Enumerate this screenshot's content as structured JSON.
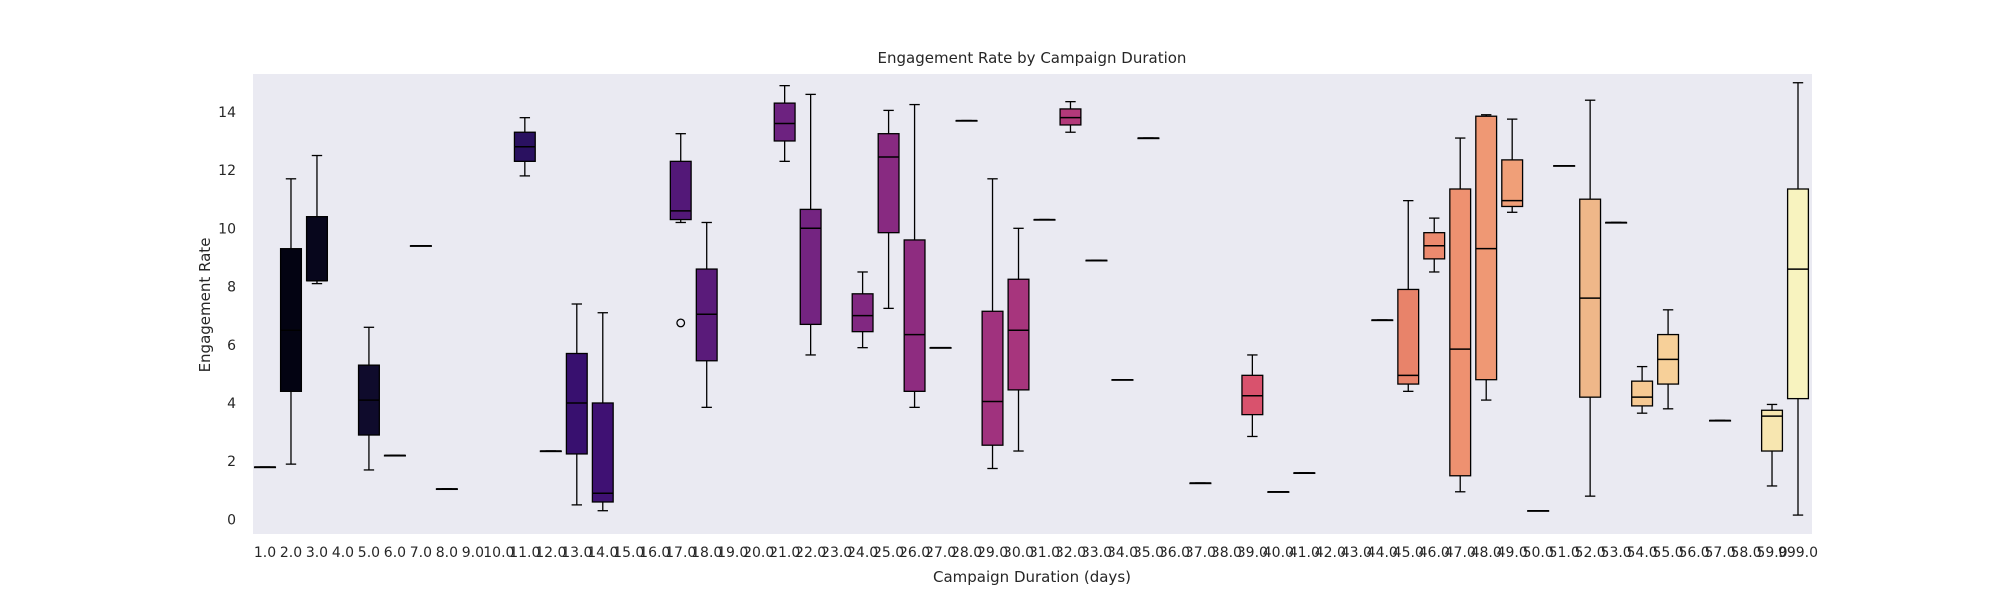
{
  "chart_data": {
    "type": "box",
    "title": "Engagement Rate by Campaign Duration",
    "xlabel": "Campaign Duration (days)",
    "ylabel": "Engagement Rate",
    "ylim": [
      -0.5,
      15.3
    ],
    "yticks": [
      0,
      2,
      4,
      6,
      8,
      10,
      12,
      14
    ],
    "grid": false,
    "categories": [
      "1.0",
      "2.0",
      "3.0",
      "4.0",
      "5.0",
      "6.0",
      "7.0",
      "8.0",
      "9.0",
      "10.0",
      "11.0",
      "12.0",
      "13.0",
      "14.0",
      "15.0",
      "16.0",
      "17.0",
      "18.0",
      "19.0",
      "20.0",
      "21.0",
      "22.0",
      "23.0",
      "24.0",
      "25.0",
      "26.0",
      "27.0",
      "28.0",
      "29.0",
      "30.0",
      "31.0",
      "32.0",
      "33.0",
      "34.0",
      "35.0",
      "36.0",
      "37.0",
      "38.0",
      "39.0",
      "40.0",
      "41.0",
      "42.0",
      "43.0",
      "44.0",
      "45.0",
      "46.0",
      "47.0",
      "48.0",
      "49.0",
      "50.0",
      "51.0",
      "52.0",
      "53.0",
      "54.0",
      "55.0",
      "56.0",
      "57.0",
      "58.0",
      "59.0",
      "999.0"
    ],
    "boxes": [
      {
        "category": "1.0",
        "whisker_low": 1.8,
        "q1": 1.8,
        "median": 1.8,
        "q3": 1.8,
        "whisker_high": 1.8,
        "color": "#000004"
      },
      {
        "category": "2.0",
        "whisker_low": 1.9,
        "q1": 4.4,
        "median": 6.5,
        "q3": 9.3,
        "whisker_high": 11.7,
        "color": "#030312"
      },
      {
        "category": "3.0",
        "whisker_low": 8.1,
        "q1": 8.2,
        "median": 8.2,
        "q3": 10.4,
        "whisker_high": 12.5,
        "color": "#07061c"
      },
      {
        "category": "5.0",
        "whisker_low": 1.7,
        "q1": 2.9,
        "median": 4.1,
        "q3": 5.3,
        "whisker_high": 6.6,
        "color": "#0f0b2c"
      },
      {
        "category": "6.0",
        "whisker_low": 2.2,
        "q1": 2.2,
        "median": 2.2,
        "q3": 2.2,
        "whisker_high": 2.2,
        "color": "#140e36"
      },
      {
        "category": "7.0",
        "whisker_low": 9.4,
        "q1": 9.4,
        "median": 9.4,
        "q3": 9.4,
        "whisker_high": 9.4,
        "color": "#18123f"
      },
      {
        "category": "8.0",
        "whisker_low": 1.05,
        "q1": 1.05,
        "median": 1.05,
        "q3": 1.05,
        "whisker_high": 1.05,
        "color": "#1d1147"
      },
      {
        "category": "11.0",
        "whisker_low": 11.8,
        "q1": 12.3,
        "median": 12.8,
        "q3": 13.3,
        "whisker_high": 13.8,
        "color": "#2a1160"
      },
      {
        "category": "12.0",
        "whisker_low": 2.35,
        "q1": 2.35,
        "median": 2.35,
        "q3": 2.35,
        "whisker_high": 2.35,
        "color": "#31106b"
      },
      {
        "category": "13.0",
        "whisker_low": 0.5,
        "q1": 2.25,
        "median": 4.0,
        "q3": 5.7,
        "whisker_high": 7.4,
        "color": "#38106f"
      },
      {
        "category": "14.0",
        "whisker_low": 0.3,
        "q1": 0.6,
        "median": 0.9,
        "q3": 4.0,
        "whisker_high": 7.1,
        "color": "#3f1173"
      },
      {
        "category": "17.0",
        "whisker_low": 10.2,
        "q1": 10.3,
        "median": 10.6,
        "q3": 12.3,
        "whisker_high": 13.25,
        "color": "#531878",
        "outliers": [
          6.75
        ]
      },
      {
        "category": "18.0",
        "whisker_low": 3.85,
        "q1": 5.45,
        "median": 7.05,
        "q3": 8.6,
        "whisker_high": 10.2,
        "color": "#5a1b7a"
      },
      {
        "category": "21.0",
        "whisker_low": 12.3,
        "q1": 13.0,
        "median": 13.6,
        "q3": 14.3,
        "whisker_high": 14.9,
        "color": "#6d2280"
      },
      {
        "category": "22.0",
        "whisker_low": 5.65,
        "q1": 6.7,
        "median": 10.0,
        "q3": 10.65,
        "whisker_high": 14.6,
        "color": "#742481"
      },
      {
        "category": "24.0",
        "whisker_low": 5.9,
        "q1": 6.45,
        "median": 7.0,
        "q3": 7.75,
        "whisker_high": 8.5,
        "color": "#812881"
      },
      {
        "category": "25.0",
        "whisker_low": 7.25,
        "q1": 9.85,
        "median": 12.45,
        "q3": 13.25,
        "whisker_high": 14.05,
        "color": "#882a81"
      },
      {
        "category": "26.0",
        "whisker_low": 3.85,
        "q1": 4.4,
        "median": 6.35,
        "q3": 9.6,
        "whisker_high": 14.25,
        "color": "#8e2c80"
      },
      {
        "category": "27.0",
        "whisker_low": 5.9,
        "q1": 5.9,
        "median": 5.9,
        "q3": 5.9,
        "whisker_high": 5.9,
        "color": "#942e80"
      },
      {
        "category": "28.0",
        "whisker_low": 13.7,
        "q1": 13.7,
        "median": 13.7,
        "q3": 13.7,
        "whisker_high": 13.7,
        "color": "#9a307f"
      },
      {
        "category": "29.0",
        "whisker_low": 1.75,
        "q1": 2.55,
        "median": 4.05,
        "q3": 7.15,
        "whisker_high": 11.7,
        "color": "#a0327e"
      },
      {
        "category": "30.0",
        "whisker_low": 2.35,
        "q1": 4.45,
        "median": 6.5,
        "q3": 8.25,
        "whisker_high": 10.0,
        "color": "#a7357d"
      },
      {
        "category": "31.0",
        "whisker_low": 10.3,
        "q1": 10.3,
        "median": 10.3,
        "q3": 10.3,
        "whisker_high": 10.3,
        "color": "#ad377c"
      },
      {
        "category": "32.0",
        "whisker_low": 13.3,
        "q1": 13.55,
        "median": 13.8,
        "q3": 14.1,
        "whisker_high": 14.35,
        "color": "#b3397a"
      },
      {
        "category": "33.0",
        "whisker_low": 8.9,
        "q1": 8.9,
        "median": 8.9,
        "q3": 8.9,
        "whisker_high": 8.9,
        "color": "#b93c78"
      },
      {
        "category": "34.0",
        "whisker_low": 4.8,
        "q1": 4.8,
        "median": 4.8,
        "q3": 4.8,
        "whisker_high": 4.8,
        "color": "#bf3f76"
      },
      {
        "category": "35.0",
        "whisker_low": 13.1,
        "q1": 13.1,
        "median": 13.1,
        "q3": 13.1,
        "whisker_high": 13.1,
        "color": "#c44174"
      },
      {
        "category": "37.0",
        "whisker_low": 1.25,
        "q1": 1.25,
        "median": 1.25,
        "q3": 1.25,
        "whisker_high": 1.25,
        "color": "#cf4970"
      },
      {
        "category": "39.0",
        "whisker_low": 2.85,
        "q1": 3.6,
        "median": 4.25,
        "q3": 4.95,
        "whisker_high": 5.65,
        "color": "#d9526d"
      },
      {
        "category": "40.0",
        "whisker_low": 0.95,
        "q1": 0.95,
        "median": 0.95,
        "q3": 0.95,
        "whisker_high": 0.95,
        "color": "#dd566c"
      },
      {
        "category": "41.0",
        "whisker_low": 1.6,
        "q1": 1.6,
        "median": 1.6,
        "q3": 1.6,
        "whisker_high": 1.6,
        "color": "#e15b6b"
      },
      {
        "category": "44.0",
        "whisker_low": 6.85,
        "q1": 6.85,
        "median": 6.85,
        "q3": 6.85,
        "whisker_high": 6.85,
        "color": "#ea6a6b"
      },
      {
        "category": "45.0",
        "whisker_low": 4.4,
        "q1": 4.65,
        "median": 4.95,
        "q3": 7.9,
        "whisker_high": 10.95,
        "color": "#e8836a"
      },
      {
        "category": "46.0",
        "whisker_low": 8.5,
        "q1": 8.95,
        "median": 9.4,
        "q3": 9.85,
        "whisker_high": 10.35,
        "color": "#ec8a6e"
      },
      {
        "category": "47.0",
        "whisker_low": 0.95,
        "q1": 1.5,
        "median": 5.85,
        "q3": 11.35,
        "whisker_high": 13.1,
        "color": "#ee9170"
      },
      {
        "category": "48.0",
        "whisker_low": 4.1,
        "q1": 4.8,
        "median": 9.3,
        "q3": 13.85,
        "whisker_high": 13.9,
        "color": "#ef9874"
      },
      {
        "category": "49.0",
        "whisker_low": 10.55,
        "q1": 10.75,
        "median": 10.95,
        "q3": 12.35,
        "whisker_high": 13.75,
        "color": "#f09f78"
      },
      {
        "category": "50.0",
        "whisker_low": 0.3,
        "q1": 0.3,
        "median": 0.3,
        "q3": 0.3,
        "whisker_high": 0.3,
        "color": "#f1a57c"
      },
      {
        "category": "51.0",
        "whisker_low": 12.15,
        "q1": 12.15,
        "median": 12.15,
        "q3": 12.15,
        "whisker_high": 12.15,
        "color": "#f2ab80"
      },
      {
        "category": "52.0",
        "whisker_low": 0.8,
        "q1": 4.2,
        "median": 7.6,
        "q3": 11.0,
        "whisker_high": 14.4,
        "color": "#efb789"
      },
      {
        "category": "53.0",
        "whisker_low": 10.2,
        "q1": 10.2,
        "median": 10.2,
        "q3": 10.2,
        "whisker_high": 10.2,
        "color": "#f3bd8c"
      },
      {
        "category": "54.0",
        "whisker_low": 3.65,
        "q1": 3.9,
        "median": 4.2,
        "q3": 4.75,
        "whisker_high": 5.25,
        "color": "#f6c993"
      },
      {
        "category": "55.0",
        "whisker_low": 3.8,
        "q1": 4.65,
        "median": 5.5,
        "q3": 6.35,
        "whisker_high": 7.2,
        "color": "#f7d099"
      },
      {
        "category": "57.0",
        "whisker_low": 3.4,
        "q1": 3.4,
        "median": 3.4,
        "q3": 3.4,
        "whisker_high": 3.4,
        "color": "#f8dca6"
      },
      {
        "category": "59.0",
        "whisker_low": 1.15,
        "q1": 2.35,
        "median": 3.55,
        "q3": 3.75,
        "whisker_high": 3.95,
        "color": "#f7e6b0"
      },
      {
        "category": "999.0",
        "whisker_low": 0.15,
        "q1": 4.15,
        "median": 8.6,
        "q3": 11.35,
        "whisker_high": 15.0,
        "color": "#f8f3bf"
      }
    ]
  }
}
